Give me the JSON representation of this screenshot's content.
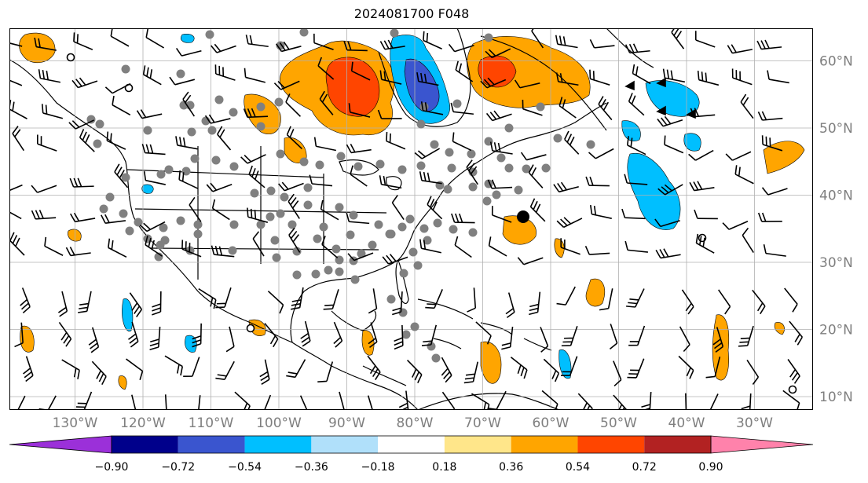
{
  "title": "2024081700 F048",
  "map": {
    "lon_labels": [
      "130°W",
      "120°W",
      "110°W",
      "100°W",
      "90°W",
      "80°W",
      "70°W",
      "60°W",
      "50°W",
      "40°W",
      "30°W"
    ],
    "lat_labels": [
      "60°N",
      "50°N",
      "40°N",
      "30°N",
      "20°N",
      "10°N"
    ]
  },
  "colorbar": {
    "labels": [
      "−0.90",
      "−0.72",
      "−0.54",
      "−0.36",
      "−0.18",
      "0.18",
      "0.36",
      "0.54",
      "0.72",
      "0.90"
    ],
    "colors": [
      "#9b30d9",
      "#00008b",
      "#3a55cf",
      "#00bfff",
      "#b0e0fa",
      "#ffffff",
      "#ffe68a",
      "#ffa500",
      "#ff4500",
      "#b22222",
      "#ff82ab"
    ],
    "extend": "both"
  },
  "colors": {
    "orange": "#ffa500",
    "red_orange": "#ff4500",
    "light_blue": "#00bfff",
    "royal_blue": "#3a55cf",
    "station_gray": "#808080",
    "grid": "#b0b0b0"
  }
}
